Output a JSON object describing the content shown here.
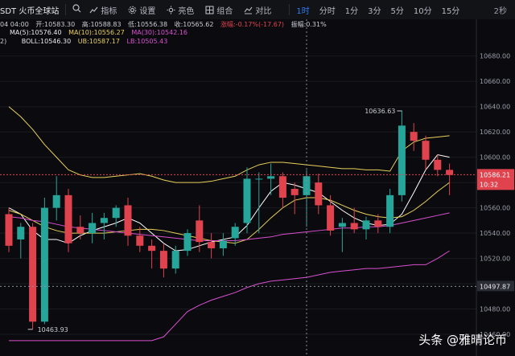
{
  "toolbar": {
    "symbol": "SDT 火币全球站",
    "items": [
      "指标",
      "设置",
      "亮色",
      "组合",
      "对比"
    ],
    "intervals": [
      {
        "label": "1时",
        "active": true
      },
      {
        "label": "分时",
        "active": false
      },
      {
        "label": "1分",
        "active": false
      },
      {
        "label": "3分",
        "active": false
      },
      {
        "label": "5分",
        "active": false
      },
      {
        "label": "10分",
        "active": false
      },
      {
        "label": "15分",
        "active": false
      }
    ],
    "right_label": "2秒"
  },
  "info_row1": {
    "time": "04 04:00",
    "open": "开:10583.30",
    "high": "高:10588.83",
    "low": "低:10556.38",
    "close": "收:10565.62",
    "change": "涨幅:-0.17%(-17.67)",
    "amplitude": "振幅:0.31%"
  },
  "info_row2": {
    "ma5": "MA(5):10576.40",
    "ma10": "MA(10):10556.27",
    "ma30": "MA(30):10542.16"
  },
  "info_row3": {
    "prefix": "2)",
    "boll": "BOLL:10546.30",
    "ub": "UB:10587.17",
    "lb": "LB:10505.43"
  },
  "price_tag": {
    "price": "10586.21",
    "countdown": "10:32"
  },
  "crosshair_label": "10497.87",
  "watermark": "头条 @雅晴论币",
  "chart_data": {
    "type": "candlestick",
    "ylim": [
      10460,
      10690
    ],
    "yticks": [
      10460,
      10480,
      10500,
      10520,
      10540,
      10560,
      10580,
      10600,
      10620,
      10640,
      10660,
      10680
    ],
    "annotations": [
      {
        "label": "10636.63",
        "value": 10636.63,
        "kind": "high",
        "index": 33
      },
      {
        "label": "10463.93",
        "value": 10463.93,
        "kind": "low",
        "index": 2
      }
    ],
    "candles": [
      {
        "o": 10555,
        "h": 10560,
        "l": 10525,
        "c": 10530
      },
      {
        "o": 10535,
        "h": 10548,
        "l": 10520,
        "c": 10545
      },
      {
        "o": 10545,
        "h": 10548,
        "l": 10464,
        "c": 10470
      },
      {
        "o": 10470,
        "h": 10568,
        "l": 10468,
        "c": 10560
      },
      {
        "o": 10560,
        "h": 10585,
        "l": 10550,
        "c": 10570
      },
      {
        "o": 10570,
        "h": 10575,
        "l": 10525,
        "c": 10532
      },
      {
        "o": 10545,
        "h": 10554,
        "l": 10535,
        "c": 10540
      },
      {
        "o": 10540,
        "h": 10556,
        "l": 10532,
        "c": 10548
      },
      {
        "o": 10548,
        "h": 10556,
        "l": 10535,
        "c": 10552
      },
      {
        "o": 10552,
        "h": 10562,
        "l": 10545,
        "c": 10560
      },
      {
        "o": 10562,
        "h": 10568,
        "l": 10530,
        "c": 10538
      },
      {
        "o": 10538,
        "h": 10545,
        "l": 10525,
        "c": 10530
      },
      {
        "o": 10530,
        "h": 10535,
        "l": 10512,
        "c": 10526
      },
      {
        "o": 10526,
        "h": 10532,
        "l": 10505,
        "c": 10512
      },
      {
        "o": 10512,
        "h": 10530,
        "l": 10508,
        "c": 10526
      },
      {
        "o": 10526,
        "h": 10543,
        "l": 10522,
        "c": 10540
      },
      {
        "o": 10550,
        "h": 10562,
        "l": 10525,
        "c": 10533
      },
      {
        "o": 10533,
        "h": 10540,
        "l": 10520,
        "c": 10528
      },
      {
        "o": 10528,
        "h": 10540,
        "l": 10522,
        "c": 10534
      },
      {
        "o": 10536,
        "h": 10548,
        "l": 10530,
        "c": 10545
      },
      {
        "o": 10548,
        "h": 10592,
        "l": 10540,
        "c": 10583
      },
      {
        "o": 10583,
        "h": 10588,
        "l": 10540,
        "c": 10583
      },
      {
        "o": 10583,
        "h": 10595,
        "l": 10570,
        "c": 10585
      },
      {
        "o": 10585,
        "h": 10588,
        "l": 10560,
        "c": 10568
      },
      {
        "o": 10575,
        "h": 10580,
        "l": 10555,
        "c": 10570
      },
      {
        "o": 10570,
        "h": 10590,
        "l": 10545,
        "c": 10585
      },
      {
        "o": 10580,
        "h": 10587,
        "l": 10555,
        "c": 10562
      },
      {
        "o": 10562,
        "h": 10570,
        "l": 10538,
        "c": 10542
      },
      {
        "o": 10545,
        "h": 10552,
        "l": 10525,
        "c": 10548
      },
      {
        "o": 10548,
        "h": 10560,
        "l": 10540,
        "c": 10543
      },
      {
        "o": 10543,
        "h": 10553,
        "l": 10535,
        "c": 10550
      },
      {
        "o": 10550,
        "h": 10555,
        "l": 10540,
        "c": 10545
      },
      {
        "o": 10545,
        "h": 10575,
        "l": 10540,
        "c": 10570
      },
      {
        "o": 10570,
        "h": 10637,
        "l": 10565,
        "c": 10625
      },
      {
        "o": 10620,
        "h": 10627,
        "l": 10605,
        "c": 10613
      },
      {
        "o": 10613,
        "h": 10617,
        "l": 10590,
        "c": 10598
      },
      {
        "o": 10598,
        "h": 10602,
        "l": 10585,
        "c": 10590
      },
      {
        "o": 10590,
        "h": 10595,
        "l": 10570,
        "c": 10586
      }
    ],
    "series": [
      {
        "name": "MA(5)",
        "color": "#ffffff",
        "values": [
          10560,
          10555,
          10542,
          10535,
          10535,
          10532,
          10538,
          10542,
          10545,
          10548,
          10552,
          10548,
          10540,
          10532,
          10526,
          10527,
          10530,
          10533,
          10535,
          10537,
          10546,
          10560,
          10573,
          10580,
          10578,
          10575,
          10572,
          10565,
          10558,
          10552,
          10548,
          10546,
          10547,
          10555,
          10572,
          10590,
          10602,
          10600
        ]
      },
      {
        "name": "MA(10)",
        "color": "#e8d05a",
        "values": [
          10558,
          10555,
          10550,
          10545,
          10542,
          10540,
          10540,
          10540,
          10540,
          10541,
          10542,
          10543,
          10543,
          10542,
          10540,
          10538,
          10536,
          10534,
          10533,
          10532,
          10535,
          10543,
          10552,
          10560,
          10566,
          10568,
          10568,
          10566,
          10562,
          10558,
          10555,
          10553,
          10552,
          10553,
          10558,
          10565,
          10573,
          10580
        ]
      },
      {
        "name": "MA(30)",
        "color": "#d94fd0",
        "values": [
          10553,
          10552,
          10550,
          10549,
          10547,
          10545,
          10544,
          10543,
          10542,
          10541,
          10540,
          10539,
          10538,
          10537,
          10536,
          10535,
          10534,
          10534,
          10534,
          10534,
          10535,
          10536,
          10537,
          10539,
          10540,
          10541,
          10542,
          10543,
          10544,
          10544,
          10545,
          10545,
          10546,
          10548,
          10550,
          10552,
          10554,
          10556
        ]
      },
      {
        "name": "UB",
        "color": "#e8d05a",
        "values": [
          10640,
          10632,
          10622,
          10610,
          10600,
          10590,
          10586,
          10584,
          10584,
          10585,
          10586,
          10587,
          10585,
          10582,
          10580,
          10580,
          10580,
          10581,
          10583,
          10585,
          10590,
          10594,
          10596,
          10596,
          10595,
          10594,
          10593,
          10592,
          10591,
          10591,
          10590,
          10590,
          10589,
          10605,
          10612,
          10615,
          10616,
          10617
        ]
      },
      {
        "name": "LB",
        "color": "#d94fd0",
        "values": [
          10455,
          10455,
          10455,
          10455,
          10455,
          10455,
          10455,
          10455,
          10455,
          10455,
          10455,
          10455,
          10455,
          10458,
          10468,
          10478,
          10483,
          10487,
          10490,
          10493,
          10497,
          10500,
          10502,
          10503,
          10504,
          10505,
          10507,
          10509,
          10510,
          10511,
          10512,
          10512,
          10513,
          10514,
          10515,
          10515,
          10520,
          10526
        ]
      }
    ]
  }
}
